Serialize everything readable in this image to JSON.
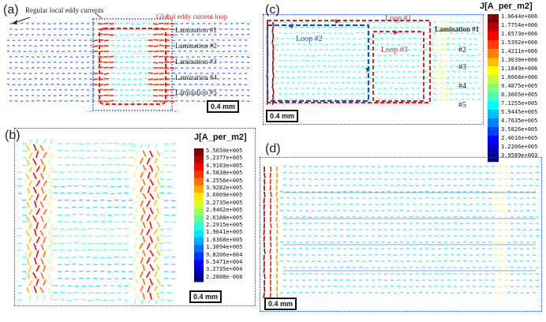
{
  "panels": {
    "a": {
      "label": "(a)",
      "annotation_regular": "Regular local eddy currents",
      "annotation_global": "Global eddy current loop",
      "laminations": [
        "Lamination #1",
        "Lamination #2",
        "Lamination #3",
        "Lamination #4",
        "Lamination #5"
      ],
      "scale_bar": "0.4 mm"
    },
    "b": {
      "label": "(b)",
      "scale_bar": "0.4 mm",
      "colorbar": {
        "title": "J[A_per_m2]",
        "ticks": [
          "5.5650e+005",
          "5.2377e+005",
          "4.9103e+005",
          "4.5830e+005",
          "4.2556e+005",
          "3.9282e+005",
          "3.6009e+005",
          "3.2735e+005",
          "2.9462e+005",
          "2.6188e+005",
          "2.2915e+005",
          "1.9641e+005",
          "1.6368e+005",
          "1.3094e+005",
          "9.8206e+004",
          "6.5471e+004",
          "3.2735e+004",
          "2.2808e-008"
        ]
      }
    },
    "c": {
      "label": "(c)",
      "loops": [
        "Loop #1",
        "Loop #2",
        "Loop #3"
      ],
      "laminations": [
        "Lamination #1",
        "#2",
        "#3",
        "#4",
        "#5"
      ],
      "scale_bar": "0.4 mm",
      "colorbar": {
        "title": "J[A_per_m2]",
        "ticks": [
          "1.9644e+006",
          "1.7754e+006",
          "1.6573e+006",
          "1.5392e+006",
          "1.4211e+006",
          "1.3030e+006",
          "1.1849e+006",
          "1.0668e+006",
          "9.4875e+005",
          "8.3065e+005",
          "7.1255e+005",
          "5.9445e+005",
          "4.7635e+005",
          "3.5826e+005",
          "2.4016e+005",
          "1.2206e+005",
          "3.9589e+003"
        ]
      }
    },
    "d": {
      "label": "(d)",
      "scale_bar": "0.4 mm"
    }
  },
  "colors": {
    "box_border": "#2448c8",
    "global_loop": "#e41a1c",
    "loop2": "#1f4fbf",
    "loop3": "#d62728"
  }
}
